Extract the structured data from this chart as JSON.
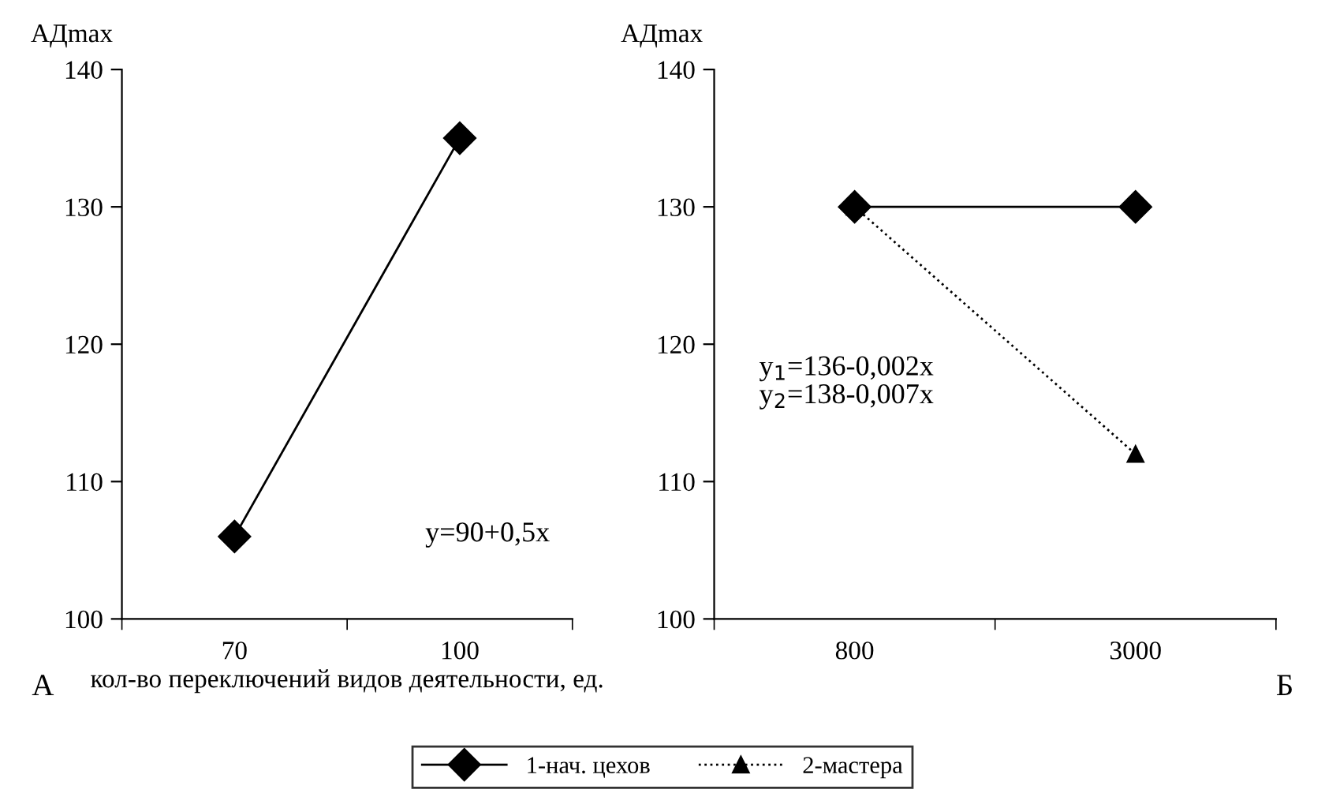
{
  "chart_data": [
    {
      "type": "line",
      "categories": [
        "70",
        "100"
      ],
      "ylabel": "АДmax",
      "xlabel": "кол-во переключений видов деятельности, ед.",
      "ylim": [
        100,
        140
      ],
      "yticks": [
        100,
        110,
        120,
        130,
        140
      ],
      "grid": false,
      "legend": false,
      "series": [
        {
          "color": "#000000",
          "values": [
            106,
            135
          ],
          "marker": "diamond",
          "line_style": "solid"
        }
      ],
      "annotations": [
        "y=90+0,5x",
        "А"
      ]
    },
    {
      "type": "line",
      "categories": [
        "800",
        "3000"
      ],
      "ylabel": "АДmax",
      "ylim": [
        100,
        140
      ],
      "yticks": [
        100,
        110,
        120,
        130,
        140
      ],
      "grid": false,
      "legend": "bottom",
      "series": [
        {
          "name": "1-нач. цехов",
          "color": "#000000",
          "values": [
            130,
            130
          ],
          "marker": "diamond",
          "line_style": "solid"
        },
        {
          "name": "2-мастера",
          "color": "#000000",
          "values": [
            130,
            112
          ],
          "marker": "triangle",
          "line_style": "dotted"
        }
      ],
      "annotations": [
        "y$_{1}$=136-0,002x\ny$_{2}$=138-0,007x",
        "Б"
      ]
    }
  ]
}
